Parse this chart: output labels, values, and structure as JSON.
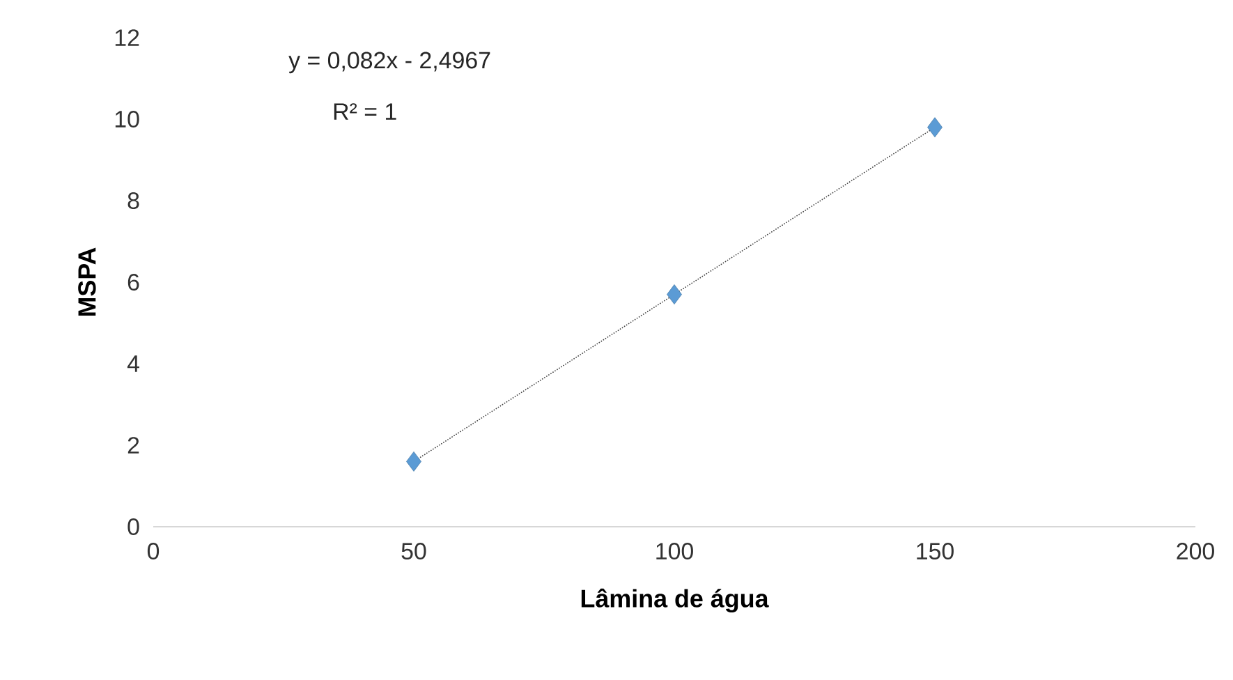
{
  "chart_data": {
    "type": "scatter",
    "xlabel": "Lâmina de água",
    "ylabel": "MSPA",
    "xlim": [
      0,
      200
    ],
    "ylim": [
      0,
      12
    ],
    "xticks": [
      0,
      50,
      100,
      150,
      200
    ],
    "yticks": [
      0,
      2,
      4,
      6,
      8,
      10,
      12
    ],
    "grid": false,
    "series": [
      {
        "color": "#5b9bd5",
        "marker": "diamond",
        "x": [
          50,
          100,
          150
        ],
        "values": [
          1.6,
          5.7,
          9.8
        ]
      },
      {
        "type": "line",
        "color": "#404040",
        "marker": "none",
        "line_style": "dotted",
        "x": [
          50,
          150
        ],
        "values": [
          1.6,
          9.8
        ]
      }
    ],
    "annotations": [
      "y = 0,082x - 2,4967",
      "R² = 1"
    ]
  }
}
